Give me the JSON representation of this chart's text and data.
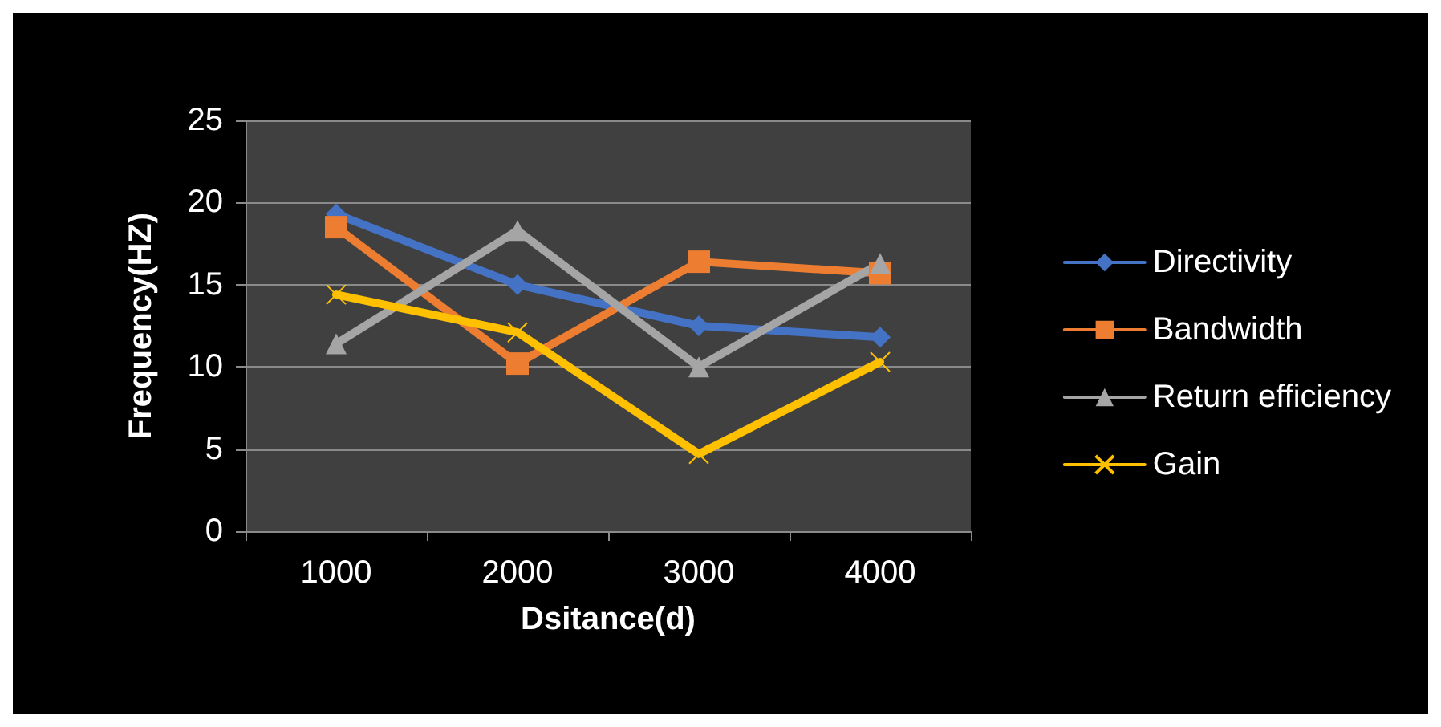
{
  "chart_data": {
    "type": "line",
    "xlabel": "Dsitance(d)",
    "ylabel": "Frequency(HZ)",
    "categories": [
      "1000",
      "2000",
      "3000",
      "4000"
    ],
    "series": [
      {
        "name": "Directivity",
        "color": "#4472c4",
        "marker": "diamond",
        "values": [
          19.3,
          15.0,
          12.5,
          11.8
        ]
      },
      {
        "name": "Bandwidth",
        "color": "#ed7d31",
        "marker": "square",
        "values": [
          18.5,
          10.2,
          16.4,
          15.7
        ]
      },
      {
        "name": "Return efficiency",
        "color": "#a5a5a5",
        "marker": "triangle",
        "values": [
          11.4,
          18.3,
          10.0,
          16.3
        ]
      },
      {
        "name": "Gain",
        "color": "#ffc000",
        "marker": "cross",
        "values": [
          14.4,
          12.1,
          4.7,
          10.3
        ]
      }
    ],
    "ylim": [
      0,
      25
    ],
    "yticks": [
      0,
      5,
      10,
      15,
      20,
      25
    ],
    "grid": "y",
    "legend": "right"
  }
}
